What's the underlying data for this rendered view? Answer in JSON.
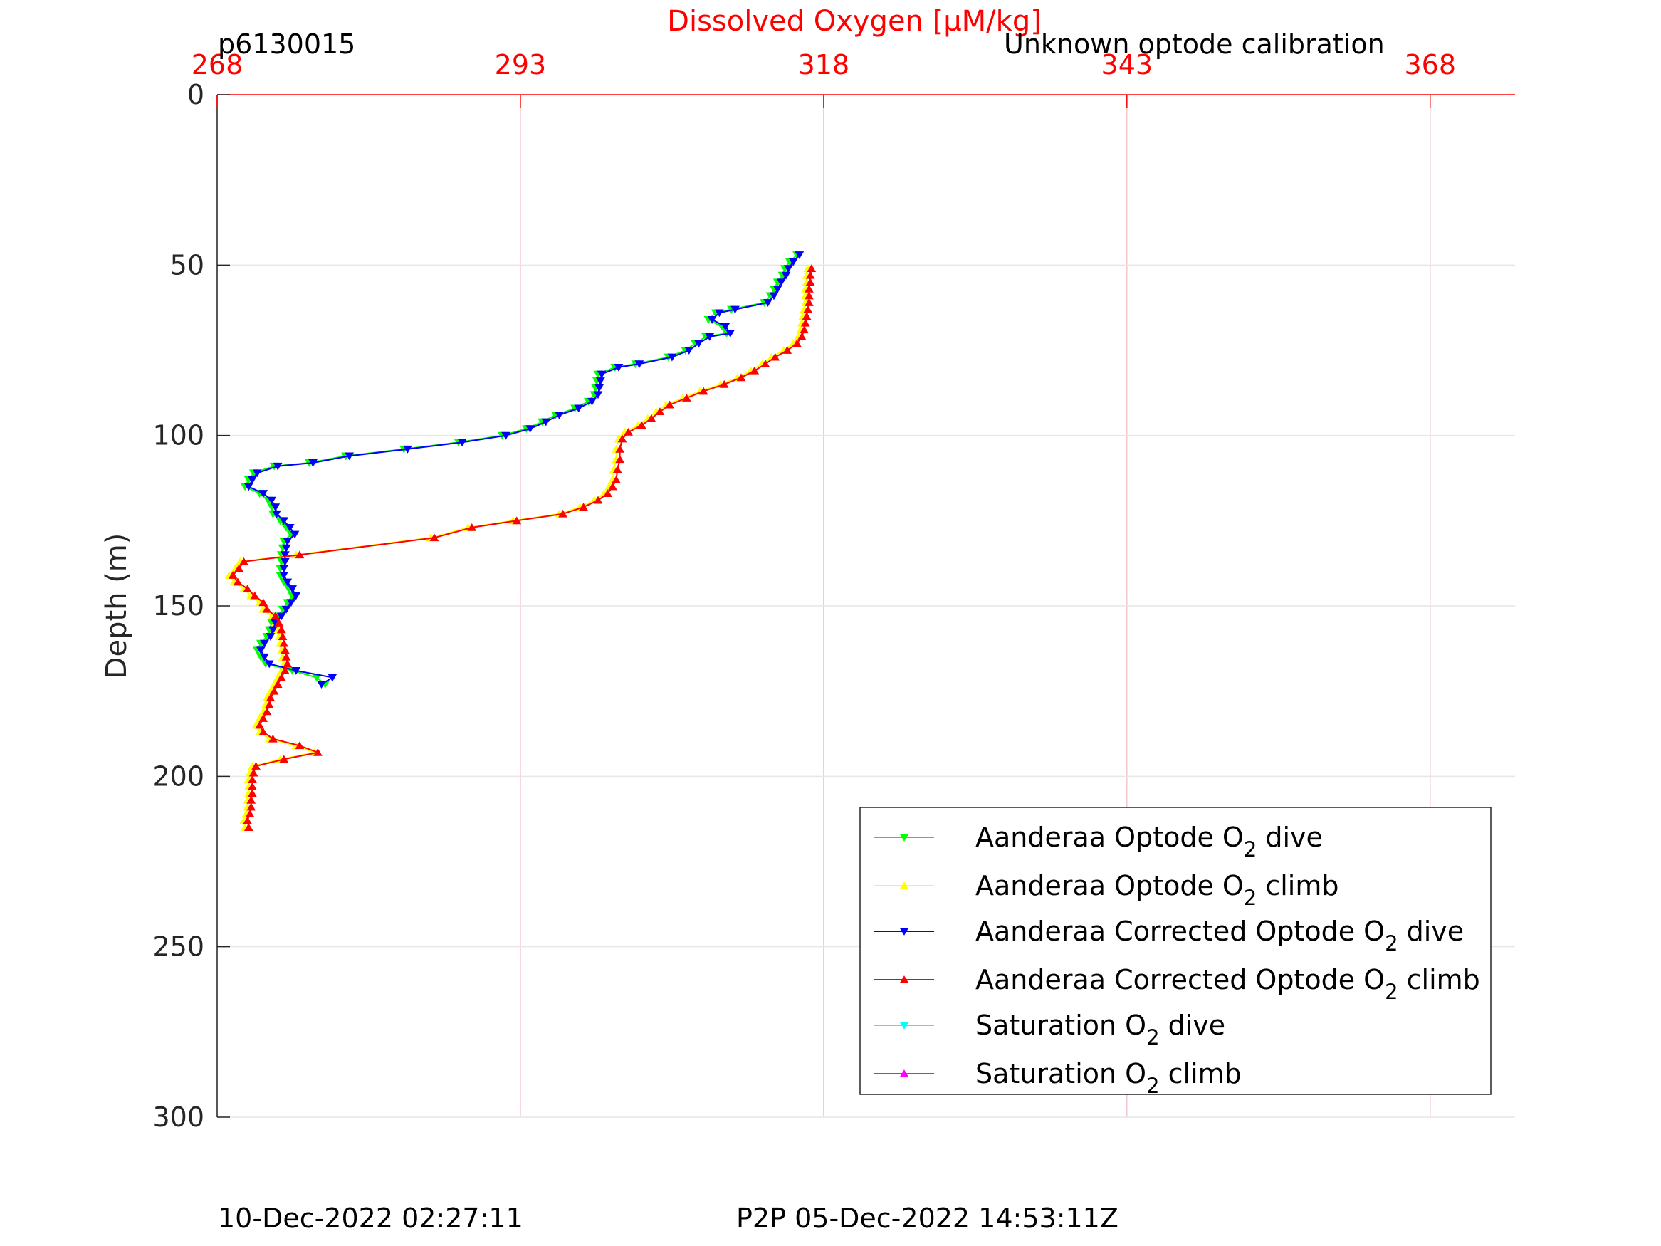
{
  "chart_data": {
    "type": "line",
    "top_title": "Dissolved Oxygen [μM/kg]",
    "left_label": "p6130015",
    "right_label": "Unknown optode calibration",
    "ylabel": "Depth (m)",
    "footer_left": "10-Dec-2022 02:27:11",
    "footer_right": "P2P 05-Dec-2022 14:53:11Z",
    "xlim": [
      268,
      375
    ],
    "ylim": [
      0,
      300
    ],
    "y_reversed": true,
    "x_axis_position": "top",
    "x_ticks": [
      268,
      293,
      318,
      343,
      368
    ],
    "y_ticks": [
      0,
      50,
      100,
      150,
      200,
      250,
      300
    ],
    "grid": true,
    "legend_position": "bottom-right",
    "colors": {
      "axis_text": "#262626",
      "title": "#ff0000",
      "x_axis": "#ff0000",
      "grid": "#e6e6e6",
      "x_grid": "#f4c6cc"
    },
    "legend": [
      {
        "pre": "Aanderaa Optode O",
        "sub": "2",
        "post": " dive",
        "color": "#00ff00",
        "marker": "down"
      },
      {
        "pre": "Aanderaa Optode O",
        "sub": "2",
        "post": " climb",
        "color": "#ffff00",
        "marker": "up"
      },
      {
        "pre": "Aanderaa Corrected Optode O",
        "sub": "2",
        "post": " dive",
        "color": "#0000ff",
        "marker": "down"
      },
      {
        "pre": "Aanderaa Corrected Optode O",
        "sub": "2",
        "post": " climb",
        "color": "#ff0000",
        "marker": "up"
      },
      {
        "pre": "Saturation O",
        "sub": "2",
        "post": " dive",
        "color": "#00ffff",
        "marker": "down"
      },
      {
        "pre": "Saturation O",
        "sub": "2",
        "post": " climb",
        "color": "#ff00ff",
        "marker": "up"
      }
    ],
    "series": [
      {
        "name": "Aanderaa Optode O2 dive",
        "color": "#00ff00",
        "marker": "down",
        "points": [
          [
            315.8,
            47
          ],
          [
            315.2,
            49
          ],
          [
            314.8,
            51
          ],
          [
            314.6,
            53
          ],
          [
            314.2,
            55
          ],
          [
            313.9,
            57
          ],
          [
            313.6,
            59
          ],
          [
            313.1,
            61
          ],
          [
            310.4,
            63
          ],
          [
            309.1,
            64
          ],
          [
            308.5,
            66
          ],
          [
            309.6,
            68
          ],
          [
            310.0,
            70
          ],
          [
            308.3,
            71
          ],
          [
            307.4,
            73
          ],
          [
            306.6,
            75
          ],
          [
            305.2,
            77
          ],
          [
            302.5,
            79
          ],
          [
            300.8,
            80
          ],
          [
            299.4,
            82
          ],
          [
            299.3,
            84
          ],
          [
            299.2,
            86
          ],
          [
            299.1,
            88
          ],
          [
            298.6,
            90
          ],
          [
            297.5,
            92
          ],
          [
            295.9,
            94
          ],
          [
            294.8,
            96
          ],
          [
            293.5,
            98
          ],
          [
            291.5,
            100
          ],
          [
            287.9,
            102
          ],
          [
            283.4,
            104
          ],
          [
            278.6,
            106
          ],
          [
            275.6,
            108
          ],
          [
            272.7,
            109
          ],
          [
            271.0,
            111
          ],
          [
            270.6,
            113
          ],
          [
            270.3,
            115
          ],
          [
            271.5,
            117
          ],
          [
            272.2,
            119
          ],
          [
            272.5,
            121
          ],
          [
            272.6,
            123
          ],
          [
            273.2,
            125
          ],
          [
            273.7,
            127
          ],
          [
            274.1,
            129
          ],
          [
            273.5,
            131
          ],
          [
            273.4,
            133
          ],
          [
            273.3,
            135
          ],
          [
            273.3,
            137
          ],
          [
            273.2,
            139
          ],
          [
            273.2,
            141
          ],
          [
            273.5,
            143
          ],
          [
            273.9,
            145
          ],
          [
            274.2,
            147
          ],
          [
            273.8,
            149
          ],
          [
            273.4,
            151
          ],
          [
            273.0,
            153
          ],
          [
            272.5,
            155
          ],
          [
            272.3,
            157
          ],
          [
            272.1,
            159
          ],
          [
            271.6,
            161
          ],
          [
            271.3,
            163
          ],
          [
            271.6,
            165
          ],
          [
            272.0,
            167
          ],
          [
            274.2,
            169
          ],
          [
            276.2,
            171
          ],
          [
            276.9,
            173
          ]
        ]
      },
      {
        "name": "Aanderaa Optode O2 climb",
        "color": "#ffff00",
        "marker": "up",
        "points": [
          [
            270.3,
            215
          ],
          [
            270.2,
            213
          ],
          [
            270.4,
            211
          ],
          [
            270.5,
            209
          ],
          [
            270.5,
            207
          ],
          [
            270.6,
            205
          ],
          [
            270.6,
            203
          ],
          [
            270.6,
            201
          ],
          [
            270.7,
            199
          ],
          [
            270.9,
            197
          ],
          [
            273.2,
            195
          ],
          [
            276.0,
            193
          ],
          [
            274.5,
            191
          ],
          [
            272.3,
            189
          ],
          [
            271.5,
            187
          ],
          [
            271.2,
            185
          ],
          [
            271.5,
            183
          ],
          [
            271.8,
            181
          ],
          [
            272.0,
            179
          ],
          [
            272.1,
            177
          ],
          [
            272.4,
            175
          ],
          [
            272.7,
            173
          ],
          [
            273.0,
            171
          ],
          [
            273.3,
            169
          ],
          [
            273.5,
            167
          ],
          [
            273.4,
            165
          ],
          [
            273.3,
            163
          ],
          [
            273.2,
            161
          ],
          [
            273.1,
            159
          ],
          [
            273.0,
            157
          ],
          [
            272.8,
            155
          ],
          [
            272.5,
            153
          ],
          [
            271.8,
            151
          ],
          [
            271.5,
            149
          ],
          [
            270.8,
            147
          ],
          [
            270.2,
            145
          ],
          [
            269.4,
            143
          ],
          [
            269.0,
            141
          ],
          [
            269.5,
            139
          ],
          [
            269.9,
            137
          ],
          [
            274.5,
            135
          ],
          [
            285.6,
            130
          ],
          [
            288.7,
            127
          ],
          [
            292.4,
            125
          ],
          [
            296.2,
            123
          ],
          [
            297.9,
            121
          ],
          [
            299.1,
            119
          ],
          [
            299.9,
            117
          ],
          [
            300.3,
            115
          ],
          [
            300.6,
            113
          ],
          [
            300.7,
            110
          ],
          [
            300.9,
            107
          ],
          [
            300.9,
            104
          ],
          [
            301.1,
            101
          ],
          [
            301.6,
            99
          ],
          [
            302.7,
            97
          ],
          [
            303.5,
            95
          ],
          [
            304.2,
            93
          ],
          [
            305.0,
            91
          ],
          [
            306.4,
            89
          ],
          [
            307.8,
            87
          ],
          [
            309.5,
            85
          ],
          [
            310.9,
            83
          ],
          [
            312.0,
            81
          ],
          [
            312.9,
            79
          ],
          [
            313.7,
            77
          ],
          [
            314.7,
            75
          ],
          [
            315.5,
            73
          ],
          [
            315.9,
            71
          ],
          [
            316.1,
            69
          ],
          [
            316.2,
            67
          ],
          [
            316.3,
            65
          ],
          [
            316.4,
            63
          ],
          [
            316.5,
            61
          ],
          [
            316.5,
            59
          ],
          [
            316.5,
            57
          ],
          [
            316.6,
            55
          ],
          [
            316.6,
            53
          ],
          [
            316.7,
            51
          ]
        ]
      },
      {
        "name": "Aanderaa Corrected Optode O2 dive",
        "color": "#0000ff",
        "marker": "down",
        "points": [
          [
            316.0,
            47
          ],
          [
            315.5,
            49
          ],
          [
            315.1,
            51
          ],
          [
            314.9,
            53
          ],
          [
            314.5,
            55
          ],
          [
            314.2,
            57
          ],
          [
            313.9,
            59
          ],
          [
            313.4,
            61
          ],
          [
            310.7,
            63
          ],
          [
            309.4,
            64
          ],
          [
            308.8,
            66
          ],
          [
            309.9,
            68
          ],
          [
            310.3,
            70
          ],
          [
            308.6,
            71
          ],
          [
            307.7,
            73
          ],
          [
            306.9,
            75
          ],
          [
            305.5,
            77
          ],
          [
            302.8,
            79
          ],
          [
            301.1,
            80
          ],
          [
            299.7,
            82
          ],
          [
            299.6,
            84
          ],
          [
            299.5,
            86
          ],
          [
            299.4,
            88
          ],
          [
            298.9,
            90
          ],
          [
            297.8,
            92
          ],
          [
            296.2,
            94
          ],
          [
            295.1,
            96
          ],
          [
            293.8,
            98
          ],
          [
            291.8,
            100
          ],
          [
            288.2,
            102
          ],
          [
            283.7,
            104
          ],
          [
            278.9,
            106
          ],
          [
            275.9,
            108
          ],
          [
            273.0,
            109
          ],
          [
            271.3,
            111
          ],
          [
            270.9,
            113
          ],
          [
            270.6,
            115
          ],
          [
            271.8,
            117
          ],
          [
            272.5,
            119
          ],
          [
            272.8,
            121
          ],
          [
            272.9,
            123
          ],
          [
            273.5,
            125
          ],
          [
            274.0,
            127
          ],
          [
            274.4,
            129
          ],
          [
            273.8,
            131
          ],
          [
            273.7,
            133
          ],
          [
            273.6,
            135
          ],
          [
            273.6,
            137
          ],
          [
            273.5,
            139
          ],
          [
            273.5,
            141
          ],
          [
            273.8,
            143
          ],
          [
            274.2,
            145
          ],
          [
            274.5,
            147
          ],
          [
            274.1,
            149
          ],
          [
            273.7,
            151
          ],
          [
            273.3,
            153
          ],
          [
            272.8,
            155
          ],
          [
            272.6,
            157
          ],
          [
            272.4,
            159
          ],
          [
            271.9,
            161
          ],
          [
            271.6,
            163
          ],
          [
            271.9,
            165
          ],
          [
            272.3,
            167
          ],
          [
            274.5,
            169
          ],
          [
            277.5,
            171
          ],
          [
            276.6,
            173
          ]
        ]
      },
      {
        "name": "Aanderaa Corrected Optode O2 climb",
        "color": "#ff0000",
        "marker": "up",
        "points": [
          [
            270.6,
            215
          ],
          [
            270.5,
            213
          ],
          [
            270.7,
            211
          ],
          [
            270.8,
            209
          ],
          [
            270.8,
            207
          ],
          [
            270.9,
            205
          ],
          [
            270.9,
            203
          ],
          [
            270.9,
            201
          ],
          [
            271.0,
            199
          ],
          [
            271.2,
            197
          ],
          [
            273.5,
            195
          ],
          [
            276.3,
            193
          ],
          [
            274.8,
            191
          ],
          [
            272.6,
            189
          ],
          [
            271.8,
            187
          ],
          [
            271.5,
            185
          ],
          [
            271.8,
            183
          ],
          [
            272.1,
            181
          ],
          [
            272.3,
            179
          ],
          [
            272.4,
            177
          ],
          [
            272.7,
            175
          ],
          [
            273.0,
            173
          ],
          [
            273.3,
            171
          ],
          [
            273.6,
            169
          ],
          [
            273.8,
            167
          ],
          [
            273.7,
            165
          ],
          [
            273.6,
            163
          ],
          [
            273.5,
            161
          ],
          [
            273.4,
            159
          ],
          [
            273.3,
            157
          ],
          [
            273.1,
            155
          ],
          [
            272.8,
            153
          ],
          [
            272.1,
            151
          ],
          [
            271.8,
            149
          ],
          [
            271.1,
            147
          ],
          [
            270.5,
            145
          ],
          [
            269.7,
            143
          ],
          [
            269.3,
            141
          ],
          [
            269.8,
            139
          ],
          [
            270.2,
            137
          ],
          [
            274.8,
            135
          ],
          [
            285.9,
            130
          ],
          [
            289.0,
            127
          ],
          [
            292.7,
            125
          ],
          [
            296.5,
            123
          ],
          [
            298.2,
            121
          ],
          [
            299.4,
            119
          ],
          [
            300.2,
            117
          ],
          [
            300.6,
            115
          ],
          [
            300.9,
            113
          ],
          [
            301.0,
            110
          ],
          [
            301.2,
            107
          ],
          [
            301.2,
            104
          ],
          [
            301.4,
            101
          ],
          [
            301.9,
            99
          ],
          [
            303.0,
            97
          ],
          [
            303.8,
            95
          ],
          [
            304.5,
            93
          ],
          [
            305.3,
            91
          ],
          [
            306.7,
            89
          ],
          [
            308.1,
            87
          ],
          [
            309.8,
            85
          ],
          [
            311.2,
            83
          ],
          [
            312.3,
            81
          ],
          [
            313.2,
            79
          ],
          [
            314.0,
            77
          ],
          [
            315.0,
            75
          ],
          [
            315.8,
            73
          ],
          [
            316.2,
            71
          ],
          [
            316.4,
            69
          ],
          [
            316.5,
            67
          ],
          [
            316.6,
            65
          ],
          [
            316.7,
            63
          ],
          [
            316.8,
            61
          ],
          [
            316.8,
            59
          ],
          [
            316.8,
            57
          ],
          [
            316.9,
            55
          ],
          [
            316.9,
            53
          ],
          [
            317.0,
            51
          ]
        ]
      }
    ]
  }
}
